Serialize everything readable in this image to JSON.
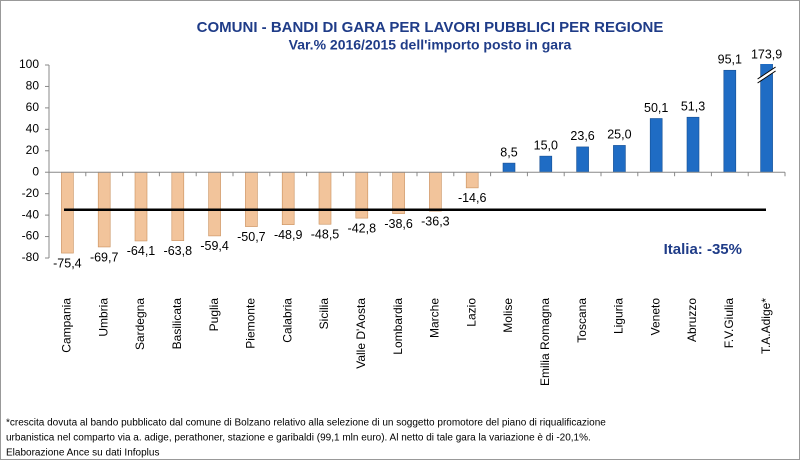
{
  "chart_data": {
    "type": "bar",
    "title": "COMUNI  - BANDI DI GARA PER LAVORI PUBBLICI PER REGIONE",
    "subtitle": "Var.% 2016/2015 dell'importo posto in gara",
    "categories": [
      "Campania",
      "Umbria",
      "Sardegna",
      "Basilicata",
      "Puglia",
      "Piemonte",
      "Calabria",
      "Sicilia",
      "Valle D'Aosta",
      "Lombardia",
      "Marche",
      "Lazio",
      "Molise",
      "Emilia Romagna",
      "Toscana",
      "Liguria",
      "Veneto",
      "Abruzzo",
      "F.V.Giulia",
      "T.A.Adige*"
    ],
    "values": [
      -75.4,
      -69.7,
      -64.1,
      -63.8,
      -59.4,
      -50.7,
      -48.9,
      -48.5,
      -42.8,
      -38.6,
      -36.3,
      -14.6,
      8.5,
      15.0,
      23.6,
      25.0,
      50.1,
      51.3,
      95.1,
      173.9
    ],
    "value_labels": [
      "-75,4",
      "-69,7",
      "-64,1",
      "-63,8",
      "-59,4",
      "-50,7",
      "-48,9",
      "-48,5",
      "-42,8",
      "-38,6",
      "-36,3",
      "-14,6",
      "8,5",
      "15,0",
      "23,6",
      "25,0",
      "50,1",
      "51,3",
      "95,1",
      "173,9"
    ],
    "negative_color": "#f2c49b",
    "positive_color": "#1f6cc4",
    "ylim": [
      -80,
      100
    ],
    "yticks": [
      -80,
      -60,
      -40,
      -20,
      0,
      20,
      40,
      60,
      80,
      100
    ],
    "reference_line": {
      "value": -35,
      "label": "Italia: -35%"
    },
    "notes": [
      "*crescita dovuta al bando pubblicato dal comune di Bolzano relativo alla selezione di un soggetto promotore del piano di riqualificazione",
      "urbanistica nel comparto via a. adige, perathoner, stazione e garibaldi (99,1 mln euro). Al netto di tale gara la variazione è di -20,1%.",
      "Elaborazione Ance su dati Infoplus"
    ]
  }
}
